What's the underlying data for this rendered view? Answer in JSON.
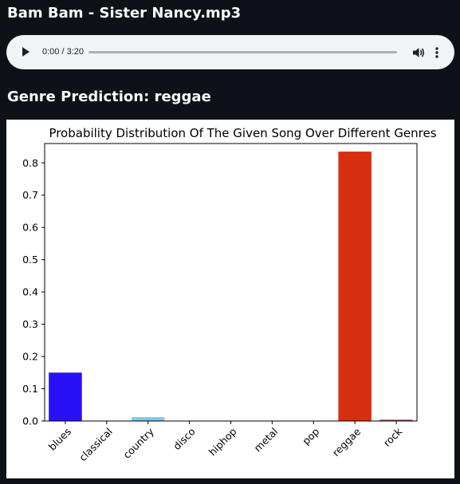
{
  "file": {
    "title": "Bam Bam - Sister Nancy.mp3"
  },
  "audio_player": {
    "time_label": "0:00 / 3:20",
    "progress": 0.0,
    "play_icon": "play-icon",
    "volume_icon": "volume-icon",
    "menu_icon": "more-vert-icon"
  },
  "prediction": {
    "heading": "Genre Prediction: reggae"
  },
  "chart_data": {
    "type": "bar",
    "title": "Probability Distribution Of The Given Song Over Different Genres",
    "xlabel": "",
    "ylabel": "",
    "ylim": [
      0,
      0.86
    ],
    "yticks": [
      "0.0",
      "0.1",
      "0.2",
      "0.3",
      "0.4",
      "0.5",
      "0.6",
      "0.7",
      "0.8"
    ],
    "grid": false,
    "categories": [
      "blues",
      "classical",
      "country",
      "disco",
      "hiphop",
      "metal",
      "pop",
      "reggae",
      "rock"
    ],
    "values": [
      0.15,
      0.0,
      0.012,
      0.0,
      0.0,
      0.0,
      0.0,
      0.835,
      0.004
    ],
    "colors": [
      "#2811f7",
      "#9b4a1d",
      "#7fc8ec",
      "#6b9e2e",
      "#b55da8",
      "#3a8a8a",
      "#c9a227",
      "#d62f10",
      "#a04040"
    ]
  }
}
